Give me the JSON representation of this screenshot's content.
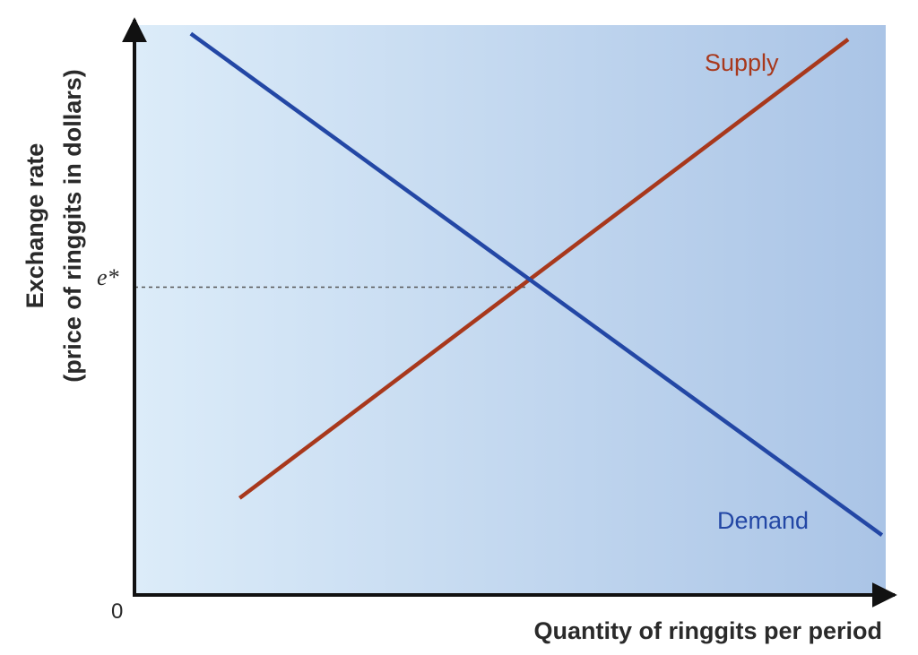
{
  "chart_data": {
    "type": "line",
    "xlabel": "Quantity of ringgits per period",
    "ylabel_lines": [
      "Exchange rate",
      "(price of ringgits in dollars)"
    ],
    "origin_label": "0",
    "equilibrium_label": "e*",
    "equilibrium": {
      "x": 52.5,
      "y": 54
    },
    "xlim": [
      0,
      100
    ],
    "ylim": [
      0,
      100
    ],
    "grid": false,
    "legend": "none",
    "series": [
      {
        "name": "Supply",
        "color": "#a8381c",
        "points": [
          [
            14,
            17
          ],
          [
            95,
            97.5
          ]
        ]
      },
      {
        "name": "Demand",
        "color": "#2347a5",
        "points": [
          [
            7.5,
            98.5
          ],
          [
            99.5,
            10.5
          ]
        ]
      }
    ],
    "background_gradient": [
      "#dcecf9",
      "#aac4e6"
    ]
  }
}
